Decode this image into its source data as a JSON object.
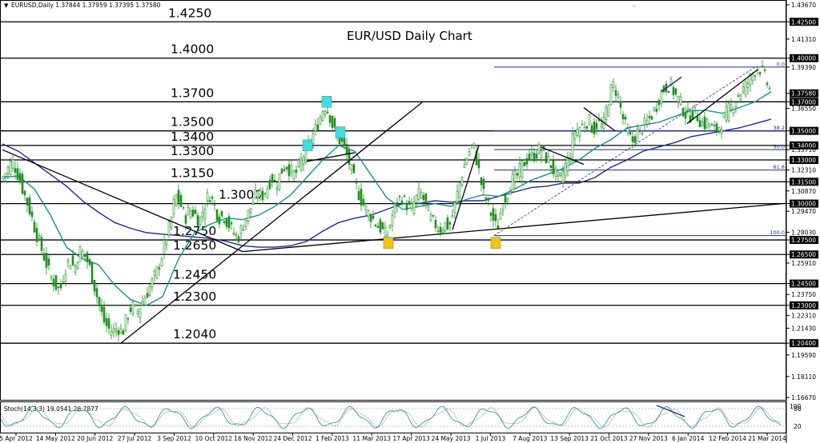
{
  "window": {
    "symbol_header": "EURUSD,Daily  1.37844 1.37959 1.37395 1.37580",
    "menu_glyph": "▼",
    "window_controls": "–"
  },
  "chart_data": {
    "type": "candlestick",
    "title": "EUR/USD Daily Chart",
    "ylim": [
      1.1667,
      1.4367
    ],
    "y_ticks": [
      "1.43670",
      "1.42500",
      "1.41310",
      "1.40000",
      "1.39390",
      "1.37580",
      "1.37000",
      "1.36550",
      "1.35000",
      "1.34000",
      "1.33710",
      "1.33000",
      "1.32310",
      "1.31500",
      "1.30870",
      "1.30000",
      "1.29470",
      "1.28030",
      "1.27500",
      "1.26500",
      "1.25910",
      "1.24500",
      "1.23750",
      "1.23000",
      "1.22310",
      "1.21430",
      "1.20400",
      "1.19590",
      "1.18110",
      "1.16670"
    ],
    "highlighted_ticks": [
      "1.42500",
      "1.40000",
      "1.37580",
      "1.37000",
      "1.35000",
      "1.34000",
      "1.33000",
      "1.31500",
      "1.30000",
      "1.27500",
      "1.26500",
      "1.24500",
      "1.23000",
      "1.20400"
    ],
    "x_ticks": [
      "5 Apr 2012",
      "14 May 2012",
      "20 Jun 2012",
      "27 Jul 2012",
      "3 Sep 2012",
      "10 Oct 2012",
      "16 Nov 2012",
      "24 Dec 2012",
      "1 Feb 2013",
      "11 Mar 2013",
      "17 Apr 2013",
      "24 May 2013",
      "1 Jul 2013",
      "7 Aug 2013",
      "13 Sep 2013",
      "21 Oct 2013",
      "27 Nov 2013",
      "6 Jan 2014",
      "12 Feb 2014",
      "21 Mar 2014"
    ],
    "levels": [
      {
        "label": "1.4250",
        "value": 1.425
      },
      {
        "label": "1.4000",
        "value": 1.4
      },
      {
        "label": "1.3700",
        "value": 1.37
      },
      {
        "label": "1.3500",
        "value": 1.35
      },
      {
        "label": "1.3400",
        "value": 1.34
      },
      {
        "label": "1.3300",
        "value": 1.33
      },
      {
        "label": "1.3150",
        "value": 1.315
      },
      {
        "label": "1.3000",
        "value": 1.3
      },
      {
        "label": "1.2750",
        "value": 1.275
      },
      {
        "label": "1.2650",
        "value": 1.265
      },
      {
        "label": "1.2450",
        "value": 1.245
      },
      {
        "label": "1.2300",
        "value": 1.23
      },
      {
        "label": "1.2040",
        "value": 1.204
      }
    ],
    "fib_labels": [
      "0.0",
      "38.2",
      "50.0",
      "61.8",
      "100.0"
    ],
    "close_path": [
      [
        0,
        1.318
      ],
      [
        6,
        1.323
      ],
      [
        12,
        1.33
      ],
      [
        18,
        1.322
      ],
      [
        24,
        1.312
      ],
      [
        30,
        1.302
      ],
      [
        36,
        1.292
      ],
      [
        42,
        1.28
      ],
      [
        48,
        1.27
      ],
      [
        54,
        1.26
      ],
      [
        60,
        1.25
      ],
      [
        66,
        1.244
      ],
      [
        72,
        1.24
      ],
      [
        78,
        1.255
      ],
      [
        84,
        1.262
      ],
      [
        90,
        1.255
      ],
      [
        96,
        1.268
      ],
      [
        102,
        1.265
      ],
      [
        108,
        1.258
      ],
      [
        114,
        1.245
      ],
      [
        120,
        1.232
      ],
      [
        126,
        1.22
      ],
      [
        132,
        1.214
      ],
      [
        138,
        1.212
      ],
      [
        144,
        1.215
      ],
      [
        150,
        1.211
      ],
      [
        156,
        1.223
      ],
      [
        162,
        1.23
      ],
      [
        168,
        1.225
      ],
      [
        174,
        1.232
      ],
      [
        180,
        1.238
      ],
      [
        186,
        1.245
      ],
      [
        192,
        1.252
      ],
      [
        198,
        1.262
      ],
      [
        204,
        1.275
      ],
      [
        210,
        1.287
      ],
      [
        216,
        1.306
      ],
      [
        222,
        1.3
      ],
      [
        228,
        1.29
      ],
      [
        234,
        1.296
      ],
      [
        240,
        1.293
      ],
      [
        246,
        1.288
      ],
      [
        252,
        1.298
      ],
      [
        258,
        1.307
      ],
      [
        264,
        1.3
      ],
      [
        270,
        1.29
      ],
      [
        276,
        1.292
      ],
      [
        282,
        1.286
      ],
      [
        288,
        1.28
      ],
      [
        294,
        1.276
      ],
      [
        300,
        1.285
      ],
      [
        306,
        1.292
      ],
      [
        312,
        1.3
      ],
      [
        318,
        1.307
      ],
      [
        324,
        1.305
      ],
      [
        330,
        1.31
      ],
      [
        336,
        1.318
      ],
      [
        342,
        1.313
      ],
      [
        348,
        1.322
      ],
      [
        354,
        1.327
      ],
      [
        360,
        1.322
      ],
      [
        366,
        1.32
      ],
      [
        372,
        1.328
      ],
      [
        378,
        1.336
      ],
      [
        384,
        1.342
      ],
      [
        390,
        1.35
      ],
      [
        396,
        1.358
      ],
      [
        402,
        1.368
      ],
      [
        408,
        1.362
      ],
      [
        414,
        1.35
      ],
      [
        420,
        1.344
      ],
      [
        426,
        1.34
      ],
      [
        432,
        1.33
      ],
      [
        438,
        1.318
      ],
      [
        444,
        1.308
      ],
      [
        450,
        1.3
      ],
      [
        456,
        1.294
      ],
      [
        462,
        1.29
      ],
      [
        468,
        1.285
      ],
      [
        474,
        1.282
      ],
      [
        480,
        1.277
      ],
      [
        486,
        1.29
      ],
      [
        492,
        1.3
      ],
      [
        498,
        1.305
      ],
      [
        504,
        1.3
      ],
      [
        510,
        1.295
      ],
      [
        516,
        1.303
      ],
      [
        522,
        1.308
      ],
      [
        528,
        1.3
      ],
      [
        534,
        1.29
      ],
      [
        540,
        1.286
      ],
      [
        546,
        1.282
      ],
      [
        552,
        1.286
      ],
      [
        558,
        1.284
      ],
      [
        564,
        1.296
      ],
      [
        570,
        1.312
      ],
      [
        576,
        1.325
      ],
      [
        582,
        1.335
      ],
      [
        588,
        1.341
      ],
      [
        594,
        1.325
      ],
      [
        600,
        1.308
      ],
      [
        606,
        1.3
      ],
      [
        612,
        1.29
      ],
      [
        618,
        1.282
      ],
      [
        624,
        1.3
      ],
      [
        630,
        1.306
      ],
      [
        636,
        1.316
      ],
      [
        642,
        1.318
      ],
      [
        648,
        1.325
      ],
      [
        654,
        1.33
      ],
      [
        660,
        1.332
      ],
      [
        666,
        1.334
      ],
      [
        672,
        1.338
      ],
      [
        678,
        1.332
      ],
      [
        684,
        1.328
      ],
      [
        690,
        1.32
      ],
      [
        696,
        1.315
      ],
      [
        702,
        1.325
      ],
      [
        708,
        1.332
      ],
      [
        714,
        1.35
      ],
      [
        720,
        1.352
      ],
      [
        726,
        1.354
      ],
      [
        732,
        1.358
      ],
      [
        738,
        1.35
      ],
      [
        744,
        1.356
      ],
      [
        750,
        1.352
      ],
      [
        756,
        1.37
      ],
      [
        762,
        1.382
      ],
      [
        768,
        1.376
      ],
      [
        774,
        1.36
      ],
      [
        780,
        1.35
      ],
      [
        786,
        1.342
      ],
      [
        792,
        1.348
      ],
      [
        798,
        1.352
      ],
      [
        804,
        1.355
      ],
      [
        810,
        1.36
      ],
      [
        816,
        1.366
      ],
      [
        822,
        1.376
      ],
      [
        828,
        1.38
      ],
      [
        834,
        1.382
      ],
      [
        840,
        1.375
      ],
      [
        846,
        1.37
      ],
      [
        852,
        1.362
      ],
      [
        858,
        1.36
      ],
      [
        864,
        1.364
      ],
      [
        870,
        1.358
      ],
      [
        876,
        1.354
      ],
      [
        882,
        1.356
      ],
      [
        888,
        1.35
      ],
      [
        894,
        1.352
      ],
      [
        900,
        1.358
      ],
      [
        906,
        1.364
      ],
      [
        912,
        1.368
      ],
      [
        918,
        1.374
      ],
      [
        924,
        1.378
      ],
      [
        930,
        1.382
      ],
      [
        936,
        1.388
      ],
      [
        942,
        1.394
      ],
      [
        948,
        1.392
      ],
      [
        954,
        1.384
      ],
      [
        960,
        1.376
      ]
    ],
    "ma_fast": [
      [
        0,
        1.318
      ],
      [
        20,
        1.319
      ],
      [
        40,
        1.31
      ],
      [
        60,
        1.292
      ],
      [
        80,
        1.27
      ],
      [
        100,
        1.262
      ],
      [
        120,
        1.258
      ],
      [
        140,
        1.244
      ],
      [
        160,
        1.234
      ],
      [
        180,
        1.23
      ],
      [
        200,
        1.236
      ],
      [
        220,
        1.262
      ],
      [
        240,
        1.28
      ],
      [
        260,
        1.286
      ],
      [
        280,
        1.29
      ],
      [
        300,
        1.289
      ],
      [
        320,
        1.292
      ],
      [
        340,
        1.298
      ],
      [
        360,
        1.306
      ],
      [
        380,
        1.318
      ],
      [
        400,
        1.33
      ],
      [
        420,
        1.34
      ],
      [
        440,
        1.336
      ],
      [
        460,
        1.32
      ],
      [
        480,
        1.304
      ],
      [
        500,
        1.296
      ],
      [
        520,
        1.298
      ],
      [
        540,
        1.3
      ],
      [
        560,
        1.298
      ],
      [
        580,
        1.303
      ],
      [
        600,
        1.306
      ],
      [
        620,
        1.305
      ],
      [
        640,
        1.31
      ],
      [
        660,
        1.316
      ],
      [
        680,
        1.32
      ],
      [
        700,
        1.324
      ],
      [
        720,
        1.33
      ],
      [
        740,
        1.338
      ],
      [
        760,
        1.344
      ],
      [
        780,
        1.352
      ],
      [
        800,
        1.354
      ],
      [
        820,
        1.356
      ],
      [
        840,
        1.36
      ],
      [
        860,
        1.364
      ],
      [
        880,
        1.364
      ],
      [
        900,
        1.362
      ],
      [
        920,
        1.366
      ],
      [
        940,
        1.37
      ],
      [
        960,
        1.377
      ]
    ],
    "ma_slow": [
      [
        0,
        1.341
      ],
      [
        20,
        1.336
      ],
      [
        40,
        1.328
      ],
      [
        60,
        1.32
      ],
      [
        80,
        1.312
      ],
      [
        100,
        1.302
      ],
      [
        120,
        1.294
      ],
      [
        140,
        1.287
      ],
      [
        160,
        1.283
      ],
      [
        180,
        1.28
      ],
      [
        200,
        1.279
      ],
      [
        220,
        1.278
      ],
      [
        240,
        1.277
      ],
      [
        260,
        1.276
      ],
      [
        280,
        1.274
      ],
      [
        300,
        1.271
      ],
      [
        320,
        1.27
      ],
      [
        340,
        1.27
      ],
      [
        360,
        1.271
      ],
      [
        380,
        1.274
      ],
      [
        400,
        1.281
      ],
      [
        420,
        1.287
      ],
      [
        440,
        1.29
      ],
      [
        460,
        1.292
      ],
      [
        480,
        1.296
      ],
      [
        500,
        1.3
      ],
      [
        520,
        1.3
      ],
      [
        540,
        1.302
      ],
      [
        560,
        1.301
      ],
      [
        580,
        1.302
      ],
      [
        600,
        1.302
      ],
      [
        620,
        1.305
      ],
      [
        640,
        1.308
      ],
      [
        660,
        1.311
      ],
      [
        680,
        1.312
      ],
      [
        700,
        1.314
      ],
      [
        720,
        1.314
      ],
      [
        740,
        1.318
      ],
      [
        760,
        1.325
      ],
      [
        780,
        1.33
      ],
      [
        800,
        1.336
      ],
      [
        820,
        1.339
      ],
      [
        840,
        1.342
      ],
      [
        860,
        1.346
      ],
      [
        880,
        1.348
      ],
      [
        900,
        1.35
      ],
      [
        920,
        1.352
      ],
      [
        940,
        1.355
      ],
      [
        960,
        1.358
      ]
    ],
    "trendlines": [
      {
        "from": [
          0,
          1.337
        ],
        "to": [
          300,
          1.267
        ]
      },
      {
        "from": [
          148,
          1.204
        ],
        "to": [
          525,
          1.37
        ]
      },
      {
        "from": [
          300,
          1.267
        ],
        "to": [
          975,
          1.3
        ]
      },
      {
        "from": [
          380,
          1.329
        ],
        "to": [
          440,
          1.335
        ]
      },
      {
        "from": [
          562,
          1.282
        ],
        "to": [
          595,
          1.34
        ]
      },
      {
        "from": [
          672,
          1.339
        ],
        "to": [
          726,
          1.327
        ]
      },
      {
        "from": [
          726,
          1.366
        ],
        "to": [
          765,
          1.35
        ]
      },
      {
        "from": [
          823,
          1.377
        ],
        "to": [
          848,
          1.387
        ]
      },
      {
        "from": [
          855,
          1.355
        ],
        "to": [
          943,
          1.392
        ]
      }
    ],
    "markers": [
      {
        "color": "#3ee0e0",
        "x": 405,
        "y": 1.37
      },
      {
        "color": "#3ee0e0",
        "x": 422,
        "y": 1.349
      },
      {
        "color": "#3ee0e0",
        "x": 381,
        "y": 1.34
      },
      {
        "color": "#f5c400",
        "x": 482,
        "y": 1.273
      },
      {
        "color": "#f5c400",
        "x": 616,
        "y": 1.273
      }
    ],
    "stochastic": {
      "label": "Stoch(14,3,3) 19.0541 26.7877",
      "levels": [
        "100",
        "80",
        "20"
      ]
    },
    "colors": {
      "candle": "#1e8f1e",
      "ma_fast": "#159090",
      "ma_slow": "#1f2b8c",
      "fib": "#1f2b8c",
      "marker_cyan": "#3ee0e0",
      "marker_yellow": "#f5c400"
    }
  }
}
